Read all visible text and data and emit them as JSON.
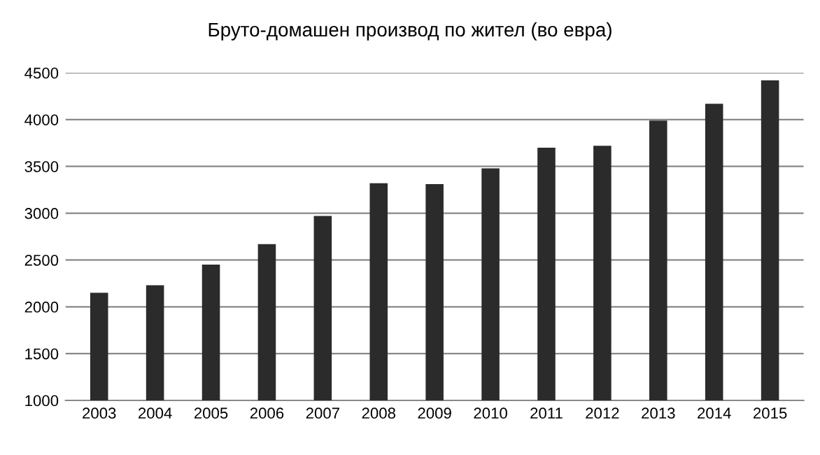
{
  "chart_data": {
    "type": "bar",
    "title": "Бруто-домашен производ по жител (во евра)",
    "categories": [
      "2003",
      "2004",
      "2005",
      "2006",
      "2007",
      "2008",
      "2009",
      "2010",
      "2011",
      "2012",
      "2013",
      "2014",
      "2015"
    ],
    "values": [
      2150,
      2230,
      2450,
      2670,
      2970,
      3320,
      3310,
      3480,
      3700,
      3720,
      3990,
      4170,
      4420
    ],
    "color": "#2b2b2b",
    "ylim": [
      1000,
      4500
    ],
    "yticks": [
      1000,
      1500,
      2000,
      2500,
      3000,
      3500,
      4000,
      4500
    ],
    "grid": "y"
  }
}
